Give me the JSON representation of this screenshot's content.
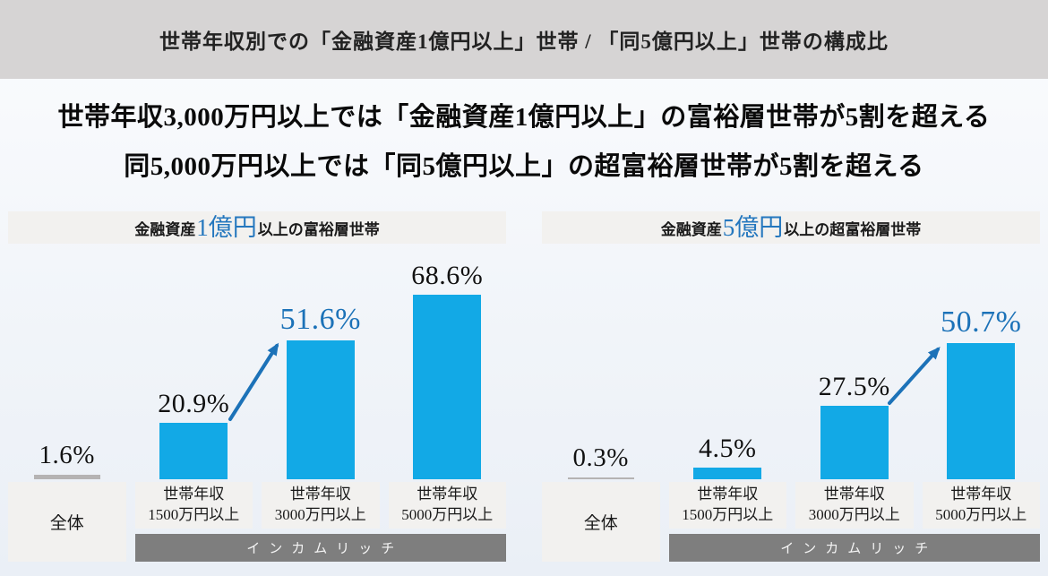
{
  "top_banner": {
    "title": "世帯年収別での「金融資産1億円以上」世帯 / 「同5億円以上」世帯の構成比"
  },
  "headline": {
    "line1": "世帯年収3,000万円以上では「金融資産1億円以上」の富裕層世帯が5割を超える",
    "line2": "同5,000万円以上では「同5億円以上」の超富裕層世帯が5割を超える"
  },
  "colors": {
    "top_banner_bg": "#d6d4d4",
    "bar_cyan": "#12a9e6",
    "overall_bar_gray": "#b5b3b3",
    "accent_blue": "#1c72b8",
    "income_band_gray": "#7e7e7e",
    "label_box_bg": "#f2f1ef"
  },
  "chart_data": [
    {
      "type": "bar",
      "title": "金融資産1億円以上の富裕層世帯",
      "title_parts": {
        "prefix": "金融資産",
        "accent": "1億円",
        "suffix": "以上の富裕層世帯"
      },
      "categories": [
        "全体",
        "世帯年収1500万円以上",
        "世帯年収3000万円以上",
        "世帯年収5000万円以上"
      ],
      "category_lines": [
        [
          "全体"
        ],
        [
          "世帯年収",
          "1500万円以上"
        ],
        [
          "世帯年収",
          "3000万円以上"
        ],
        [
          "世帯年収",
          "5000万円以上"
        ]
      ],
      "values": [
        1.6,
        20.9,
        51.6,
        68.6
      ],
      "value_labels": [
        "1.6%",
        "20.9%",
        "51.6%",
        "68.6%"
      ],
      "highlight_index": 2,
      "group_label": "インカムリッチ",
      "ylim": [
        0,
        80
      ],
      "grid": false,
      "legend": "none"
    },
    {
      "type": "bar",
      "title": "金融資産5億円以上の超富裕層世帯",
      "title_parts": {
        "prefix": "金融資産",
        "accent": "5億円",
        "suffix": "以上の超富裕層世帯"
      },
      "categories": [
        "全体",
        "世帯年収1500万円以上",
        "世帯年収3000万円以上",
        "世帯年収5000万円以上"
      ],
      "category_lines": [
        [
          "全体"
        ],
        [
          "世帯年収",
          "1500万円以上"
        ],
        [
          "世帯年収",
          "3000万円以上"
        ],
        [
          "世帯年収",
          "5000万円以上"
        ]
      ],
      "values": [
        0.3,
        4.5,
        27.5,
        50.7
      ],
      "value_labels": [
        "0.3%",
        "4.5%",
        "27.5%",
        "50.7%"
      ],
      "highlight_index": 3,
      "group_label": "インカムリッチ",
      "ylim": [
        0,
        80
      ],
      "grid": false,
      "legend": "none"
    }
  ]
}
